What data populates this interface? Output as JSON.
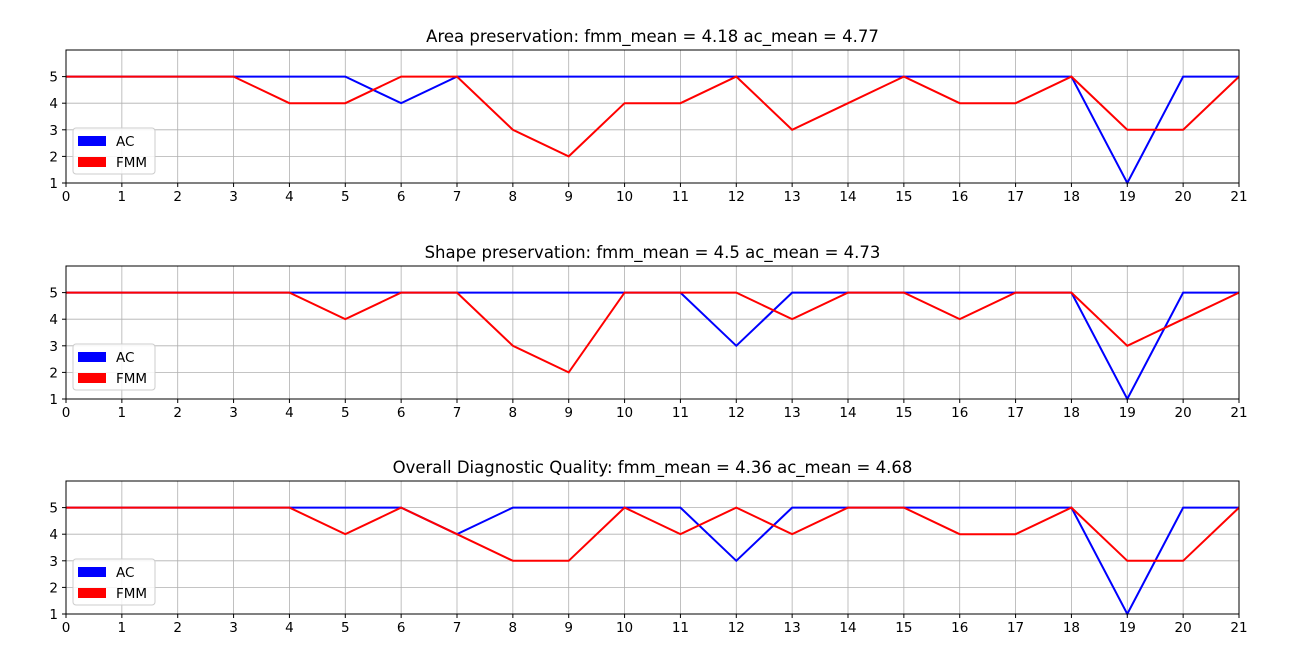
{
  "chart_data": [
    {
      "type": "line",
      "title": "Area preservation: fmm_mean = 4.18 ac_mean = 4.77",
      "xlabel": "",
      "ylabel": "",
      "x": [
        0,
        1,
        2,
        3,
        4,
        5,
        6,
        7,
        8,
        9,
        10,
        11,
        12,
        13,
        14,
        15,
        16,
        17,
        18,
        19,
        20,
        21
      ],
      "xlim": [
        0,
        21
      ],
      "ylim": [
        1,
        6
      ],
      "yticks": [
        1,
        2,
        3,
        4,
        5
      ],
      "grid": true,
      "legend_position": "lower-left",
      "series": [
        {
          "name": "AC",
          "color": "#0000ff",
          "values": [
            5,
            5,
            5,
            5,
            5,
            5,
            4,
            5,
            5,
            5,
            5,
            5,
            5,
            5,
            5,
            5,
            5,
            5,
            5,
            1,
            5,
            5
          ]
        },
        {
          "name": "FMM",
          "color": "#ff0000",
          "values": [
            5,
            5,
            5,
            5,
            4,
            4,
            5,
            5,
            3,
            2,
            4,
            4,
            5,
            3,
            4,
            5,
            4,
            4,
            5,
            3,
            3,
            5
          ]
        }
      ]
    },
    {
      "type": "line",
      "title": "Shape preservation: fmm_mean = 4.5 ac_mean = 4.73",
      "xlabel": "",
      "ylabel": "",
      "x": [
        0,
        1,
        2,
        3,
        4,
        5,
        6,
        7,
        8,
        9,
        10,
        11,
        12,
        13,
        14,
        15,
        16,
        17,
        18,
        19,
        20,
        21
      ],
      "xlim": [
        0,
        21
      ],
      "ylim": [
        1,
        6
      ],
      "yticks": [
        1,
        2,
        3,
        4,
        5
      ],
      "grid": true,
      "legend_position": "lower-left",
      "series": [
        {
          "name": "AC",
          "color": "#0000ff",
          "values": [
            5,
            5,
            5,
            5,
            5,
            5,
            5,
            5,
            5,
            5,
            5,
            5,
            3,
            5,
            5,
            5,
            5,
            5,
            5,
            1,
            5,
            5
          ]
        },
        {
          "name": "FMM",
          "color": "#ff0000",
          "values": [
            5,
            5,
            5,
            5,
            5,
            4,
            5,
            5,
            3,
            2,
            5,
            5,
            5,
            4,
            5,
            5,
            4,
            5,
            5,
            3,
            4,
            5
          ]
        }
      ]
    },
    {
      "type": "line",
      "title": "Overall Diagnostic Quality: fmm_mean = 4.36 ac_mean = 4.68",
      "xlabel": "",
      "ylabel": "",
      "x": [
        0,
        1,
        2,
        3,
        4,
        5,
        6,
        7,
        8,
        9,
        10,
        11,
        12,
        13,
        14,
        15,
        16,
        17,
        18,
        19,
        20,
        21
      ],
      "xlim": [
        0,
        21
      ],
      "ylim": [
        1,
        6
      ],
      "yticks": [
        1,
        2,
        3,
        4,
        5
      ],
      "grid": true,
      "legend_position": "lower-left",
      "series": [
        {
          "name": "AC",
          "color": "#0000ff",
          "values": [
            5,
            5,
            5,
            5,
            5,
            5,
            5,
            4,
            5,
            5,
            5,
            5,
            3,
            5,
            5,
            5,
            5,
            5,
            5,
            1,
            5,
            5
          ]
        },
        {
          "name": "FMM",
          "color": "#ff0000",
          "values": [
            5,
            5,
            5,
            5,
            5,
            4,
            5,
            4,
            3,
            3,
            5,
            4,
            5,
            4,
            5,
            5,
            4,
            4,
            5,
            3,
            3,
            5
          ]
        }
      ]
    }
  ]
}
